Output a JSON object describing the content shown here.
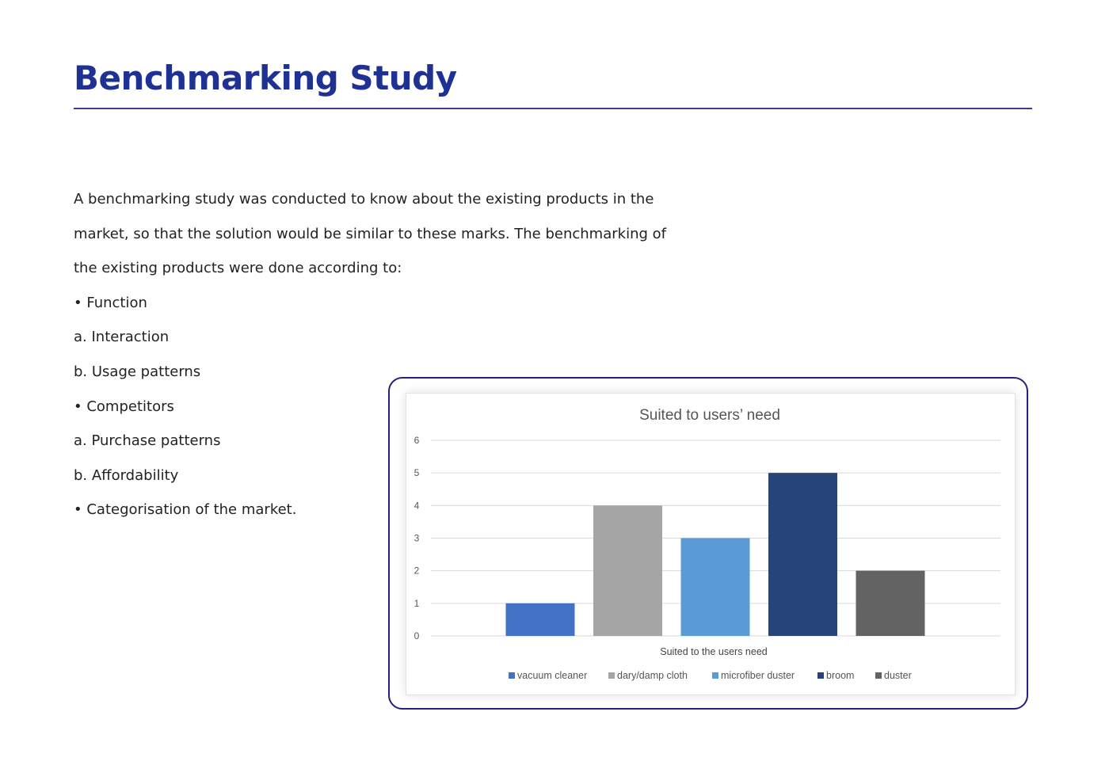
{
  "page": {
    "title": "Benchmarking Study",
    "paragraph_lines": [
      "A benchmarking study was conducted to know about the existing products in the",
      "market, so that the solution would be similar to these marks. The benchmarking of",
      "the existing products were done according to:",
      "• Function",
      "a. Interaction",
      "b. Usage patterns",
      "• Competitors",
      "a. Purchase patterns",
      "b. Affordability",
      "• Categorisation of the market."
    ]
  },
  "chart_data": {
    "type": "bar",
    "title": "Suited to users’ need",
    "xlabel": "Suited to the users need",
    "ylabel": "",
    "ylim": [
      0,
      6
    ],
    "yticks": [
      "0",
      "1",
      "2",
      "3",
      "4",
      "5",
      "6"
    ],
    "grid": true,
    "legend_position": "bottom",
    "categories": [
      "Suited to the users need"
    ],
    "series": [
      {
        "name": "vacuum cleaner",
        "values": [
          1
        ],
        "color": "#4472c4"
      },
      {
        "name": "dary/damp cloth",
        "values": [
          4
        ],
        "color": "#a5a5a5"
      },
      {
        "name": "microfiber duster",
        "values": [
          3
        ],
        "color": "#5b9bd5"
      },
      {
        "name": "broom",
        "values": [
          5
        ],
        "color": "#264478"
      },
      {
        "name": "duster",
        "values": [
          2
        ],
        "color": "#636363"
      }
    ]
  }
}
